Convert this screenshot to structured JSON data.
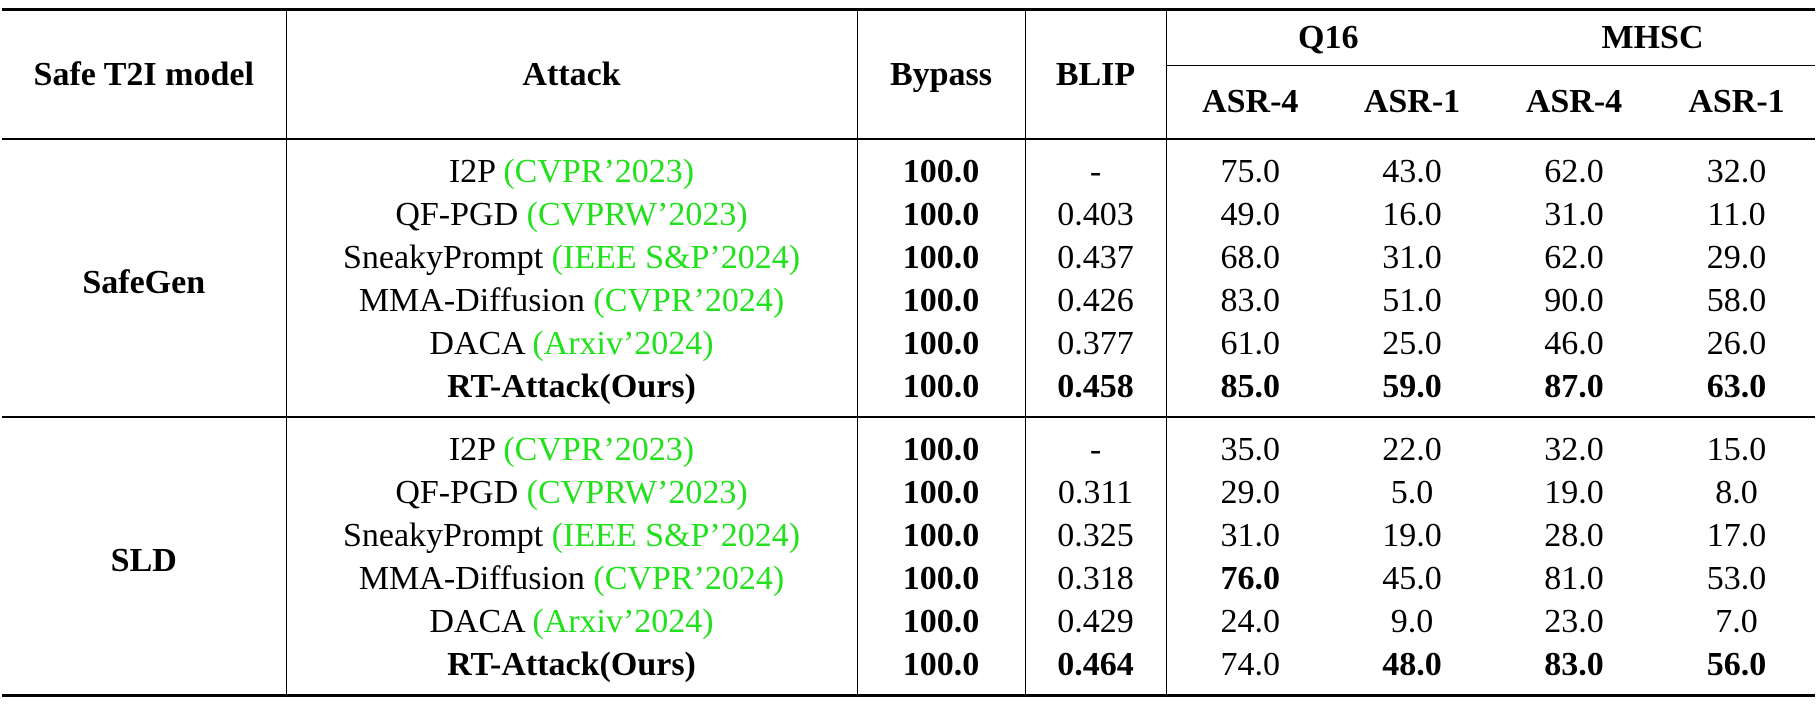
{
  "table": {
    "header": {
      "model": "Safe T2I model",
      "attack": "Attack",
      "bypass": "Bypass",
      "blip": "BLIP",
      "groups": [
        "Q16",
        "MHSC"
      ],
      "metrics": [
        "ASR-4",
        "ASR-1",
        "ASR-4",
        "ASR-1"
      ]
    },
    "groups": [
      {
        "model": "SafeGen",
        "rows": [
          {
            "attack": "I2P",
            "venue": "(CVPR’2023)",
            "cells": [
              "100.0",
              "-",
              "75.0",
              "43.0",
              "62.0",
              "32.0"
            ]
          },
          {
            "attack": "QF-PGD",
            "venue": "(CVPRW’2023)",
            "cells": [
              "100.0",
              "0.403",
              "49.0",
              "16.0",
              "31.0",
              "11.0"
            ]
          },
          {
            "attack": "SneakyPrompt",
            "venue": "(IEEE S&P’2024)",
            "cells": [
              "100.0",
              "0.437",
              "68.0",
              "31.0",
              "62.0",
              "29.0"
            ]
          },
          {
            "attack": "MMA-Diffusion",
            "venue": "(CVPR’2024)",
            "cells": [
              "100.0",
              "0.426",
              "83.0",
              "51.0",
              "90.0",
              "58.0"
            ]
          },
          {
            "attack": "DACA",
            "venue": "(Arxiv’2024)",
            "cells": [
              "100.0",
              "0.377",
              "61.0",
              "25.0",
              "46.0",
              "26.0"
            ]
          },
          {
            "attack": "RT-Attack(Ours)",
            "cells": [
              "100.0",
              "0.458",
              "85.0",
              "59.0",
              "87.0",
              "63.0"
            ]
          }
        ]
      },
      {
        "model": "SLD",
        "rows": [
          {
            "attack": "I2P",
            "venue": "(CVPR’2023)",
            "cells": [
              "100.0",
              "-",
              "35.0",
              "22.0",
              "32.0",
              "15.0"
            ]
          },
          {
            "attack": "QF-PGD",
            "venue": "(CVPRW’2023)",
            "cells": [
              "100.0",
              "0.311",
              "29.0",
              "5.0",
              "19.0",
              "8.0"
            ]
          },
          {
            "attack": "SneakyPrompt",
            "venue": "(IEEE S&P’2024)",
            "cells": [
              "100.0",
              "0.325",
              "31.0",
              "19.0",
              "28.0",
              "17.0"
            ]
          },
          {
            "attack": "MMA-Diffusion",
            "venue": "(CVPR’2024)",
            "cells": [
              "100.0",
              "0.318",
              "76.0",
              "45.0",
              "81.0",
              "53.0"
            ]
          },
          {
            "attack": "DACA",
            "venue": "(Arxiv’2024)",
            "cells": [
              "100.0",
              "0.429",
              "24.0",
              "9.0",
              "23.0",
              "7.0"
            ]
          },
          {
            "attack": "RT-Attack(Ours)",
            "cells": [
              "100.0",
              "0.464",
              "74.0",
              "48.0",
              "83.0",
              "56.0"
            ]
          }
        ]
      }
    ]
  }
}
